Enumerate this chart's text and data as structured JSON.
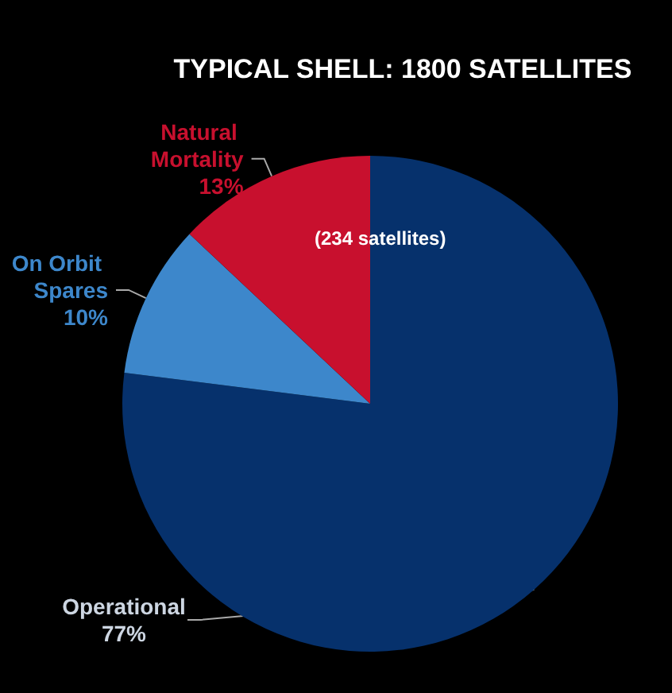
{
  "chart_data": {
    "type": "pie",
    "title": "TYPICAL SHELL: 1800 SATELLITES",
    "categories": [
      "Operational",
      "On Orbit Spares",
      "Natural Mortality"
    ],
    "values": [
      77,
      10,
      13
    ],
    "value_labels": [
      "77%",
      "10%",
      "13%"
    ],
    "colors": [
      "#06316c",
      "#3d87cb",
      "#c8102e"
    ],
    "annotations": [
      "(234 satellites)"
    ]
  }
}
